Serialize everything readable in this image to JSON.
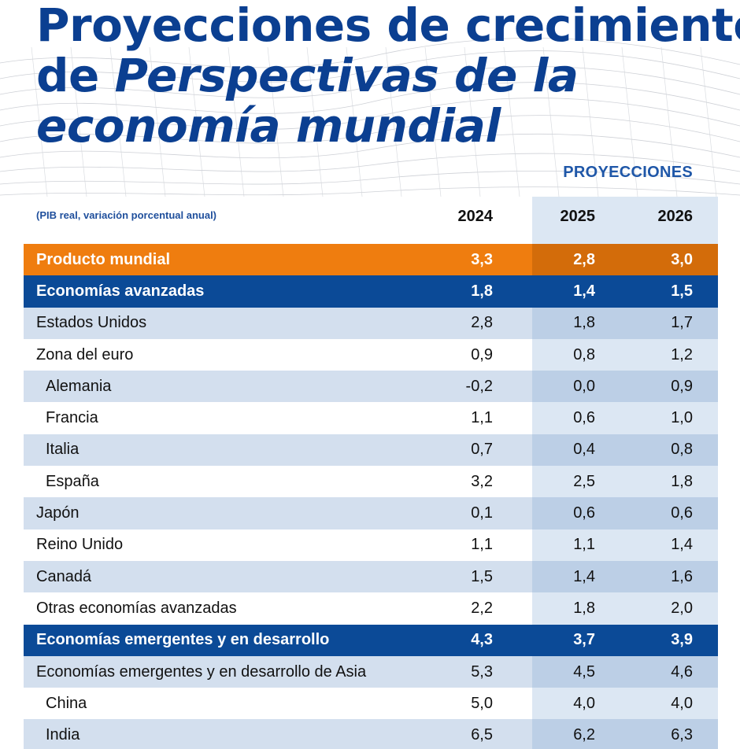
{
  "title": {
    "line1": "Proyecciones de crecimiento",
    "line2_plain": "de ",
    "line2_italic": "Perspectivas de la",
    "line3_italic": "economía mundial"
  },
  "header": {
    "projections_label": "PROYECCIONES",
    "subtitle": "(PIB real, variación porcentual anual)",
    "years": [
      "2024",
      "2025",
      "2026"
    ]
  },
  "rows": [
    {
      "label": "Producto mundial",
      "values": [
        "3,3",
        "2,8",
        "3,0"
      ]
    },
    {
      "label": "Economías avanzadas",
      "values": [
        "1,8",
        "1,4",
        "1,5"
      ]
    },
    {
      "label": "Estados Unidos",
      "values": [
        "2,8",
        "1,8",
        "1,7"
      ]
    },
    {
      "label": "Zona del euro",
      "values": [
        "0,9",
        "0,8",
        "1,2"
      ]
    },
    {
      "label": "Alemania",
      "values": [
        "-0,2",
        "0,0",
        "0,9"
      ]
    },
    {
      "label": "Francia",
      "values": [
        "1,1",
        "0,6",
        "1,0"
      ]
    },
    {
      "label": "Italia",
      "values": [
        "0,7",
        "0,4",
        "0,8"
      ]
    },
    {
      "label": "España",
      "values": [
        "3,2",
        "2,5",
        "1,8"
      ]
    },
    {
      "label": "Japón",
      "values": [
        "0,1",
        "0,6",
        "0,6"
      ]
    },
    {
      "label": "Reino Unido",
      "values": [
        "1,1",
        "1,1",
        "1,4"
      ]
    },
    {
      "label": "Canadá",
      "values": [
        "1,5",
        "1,4",
        "1,6"
      ]
    },
    {
      "label": "Otras economías avanzadas",
      "values": [
        "2,2",
        "1,8",
        "2,0"
      ]
    },
    {
      "label": "Economías emergentes y en desarrollo",
      "values": [
        "4,3",
        "3,7",
        "3,9"
      ]
    },
    {
      "label": "Economías emergentes y en desarrollo de Asia",
      "values": [
        "5,3",
        "4,5",
        "4,6"
      ]
    },
    {
      "label": "China",
      "values": [
        "5,0",
        "4,0",
        "4,0"
      ]
    },
    {
      "label": "India",
      "values": [
        "6,5",
        "6,2",
        "6,3"
      ]
    }
  ],
  "colors": {
    "title": "#0b3f91",
    "world_row": "#ef7d0f",
    "group_row": "#0b4a97",
    "shaded_row": "#d3dfee",
    "projection_shade": "#bfd3ea"
  }
}
